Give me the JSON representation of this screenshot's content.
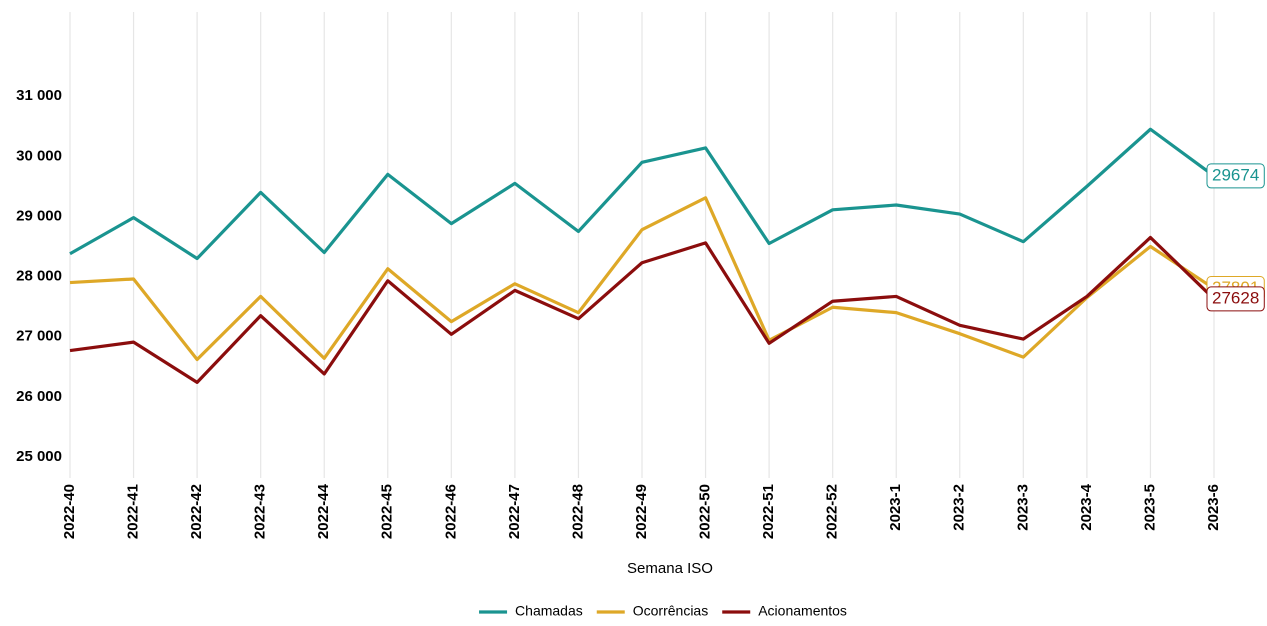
{
  "chart_data": {
    "type": "line",
    "x_label": "Semana ISO",
    "categories": [
      "2022-40",
      "2022-41",
      "2022-42",
      "2022-43",
      "2022-44",
      "2022-45",
      "2022-46",
      "2022-47",
      "2022-48",
      "2022-49",
      "2022-50",
      "2022-51",
      "2022-52",
      "2023-1",
      "2023-2",
      "2023-3",
      "2023-4",
      "2023-5",
      "2023-6"
    ],
    "series": [
      {
        "name": "Chamadas",
        "color": "#1a9490",
        "values": [
          28380,
          28980,
          28300,
          29400,
          28400,
          29700,
          28880,
          29550,
          28750,
          29900,
          30140,
          28550,
          29110,
          29190,
          29040,
          28580,
          29500,
          30450,
          29674
        ]
      },
      {
        "name": "Ocorrências",
        "color": "#dea827",
        "values": [
          27900,
          27960,
          26620,
          27670,
          26640,
          28130,
          27250,
          27880,
          27400,
          28780,
          29310,
          26940,
          27490,
          27400,
          27050,
          26660,
          27650,
          28500,
          27801
        ]
      },
      {
        "name": "Acionamentos",
        "color": "#8b0d0d",
        "values": [
          26770,
          26910,
          26240,
          27350,
          26380,
          27930,
          27040,
          27770,
          27300,
          28230,
          28560,
          26890,
          27590,
          27670,
          27190,
          26960,
          27670,
          28650,
          27628
        ]
      }
    ],
    "ylim": [
      24650,
      32400
    ],
    "yticks": [
      {
        "value": 25000,
        "label": "25 000"
      },
      {
        "value": 26000,
        "label": "26 000"
      },
      {
        "value": 27000,
        "label": "27 000"
      },
      {
        "value": 28000,
        "label": "28 000"
      },
      {
        "value": 29000,
        "label": "29 000"
      },
      {
        "value": 30000,
        "label": "30 000"
      },
      {
        "value": 31000,
        "label": "31 000"
      }
    ],
    "grid": "x",
    "legend": "bottom"
  }
}
